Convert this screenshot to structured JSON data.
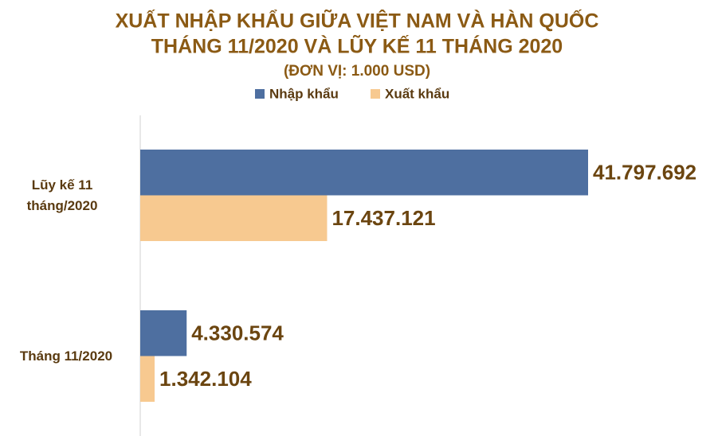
{
  "chart_data": {
    "type": "hbar",
    "title": "XUẤT NHẬP KHẨU GIỮA VIỆT NAM VÀ HÀN QUỐC",
    "subtitle": "THÁNG 11/2020 VÀ LŨY KẾ 11 THÁNG 2020",
    "unit": "(ĐƠN VỊ: 1.000 USD)",
    "categories": [
      "Lũy kế 11 tháng/2020",
      "Tháng 11/2020"
    ],
    "series": [
      {
        "name": "Nhập khẩu",
        "color": "#4e6fa0",
        "values": [
          41797692,
          4330574
        ],
        "value_labels": [
          "41.797.692",
          "4.330.574"
        ]
      },
      {
        "name": "Xuất khẩu",
        "color": "#f7c990",
        "values": [
          17437121,
          1342104
        ],
        "value_labels": [
          "17.437.121",
          "1.342.104"
        ]
      }
    ]
  }
}
